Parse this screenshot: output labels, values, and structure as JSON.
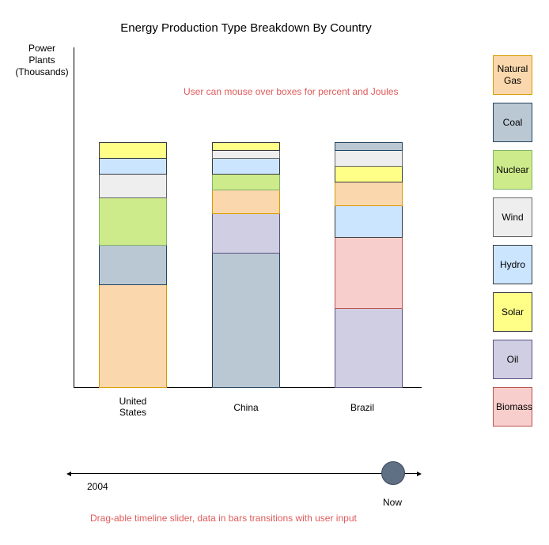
{
  "title": "Energy Production Type Breakdown By Country",
  "y_axis_label": [
    "Power",
    "Plants",
    "(Thousands)"
  ],
  "hover_note": "User can mouse over boxes for percent and Joules",
  "slider_note": "Drag-able timeline slider, data in bars transitions with user input",
  "slider": {
    "start_label": "2004",
    "end_label": "Now",
    "position": 0.93
  },
  "colors": {
    "natural_gas": "#fad7ac",
    "coal": "#bac8d3",
    "nuclear": "#cdeb8b",
    "wind": "#eeeeee",
    "hydro": "#cce5ff",
    "solar": "#ffff88",
    "oil": "#d0cee2",
    "biomass": "#f8cecc"
  },
  "legend": [
    {
      "key": "natural_gas",
      "label": "Natural Gas"
    },
    {
      "key": "coal",
      "label": "Coal"
    },
    {
      "key": "nuclear",
      "label": "Nuclear"
    },
    {
      "key": "wind",
      "label": "Wind"
    },
    {
      "key": "hydro",
      "label": "Hydro"
    },
    {
      "key": "solar",
      "label": "Solar"
    },
    {
      "key": "oil",
      "label": "Oil"
    },
    {
      "key": "biomass",
      "label": "Biomass"
    }
  ],
  "chart_data": {
    "type": "bar",
    "stacked": true,
    "categories": [
      "United States",
      "China",
      "Brazil"
    ],
    "bars": [
      {
        "country": "United States",
        "segments": [
          {
            "key": "natural_gas",
            "value": 13
          },
          {
            "key": "coal",
            "value": 5
          },
          {
            "key": "nuclear",
            "value": 6
          },
          {
            "key": "wind",
            "value": 3
          },
          {
            "key": "hydro",
            "value": 2
          },
          {
            "key": "solar",
            "value": 2
          }
        ]
      },
      {
        "country": "China",
        "segments": [
          {
            "key": "coal",
            "value": 17
          },
          {
            "key": "oil",
            "value": 5
          },
          {
            "key": "natural_gas",
            "value": 3
          },
          {
            "key": "nuclear",
            "value": 2
          },
          {
            "key": "hydro",
            "value": 2
          },
          {
            "key": "wind",
            "value": 1
          },
          {
            "key": "solar",
            "value": 1
          }
        ]
      },
      {
        "country": "Brazil",
        "segments": [
          {
            "key": "oil",
            "value": 10
          },
          {
            "key": "biomass",
            "value": 9
          },
          {
            "key": "hydro",
            "value": 4
          },
          {
            "key": "natural_gas",
            "value": 3
          },
          {
            "key": "solar",
            "value": 2
          },
          {
            "key": "wind",
            "value": 2
          },
          {
            "key": "coal",
            "value": 1
          }
        ]
      }
    ]
  }
}
